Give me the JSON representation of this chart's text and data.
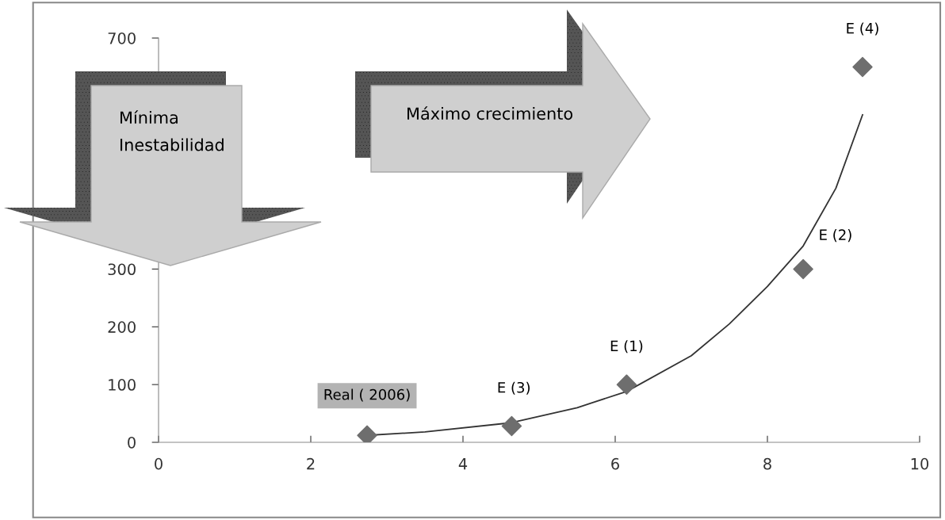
{
  "chart_data": {
    "type": "scatter",
    "xlim": [
      0,
      10
    ],
    "xticks": [
      0,
      2,
      4,
      6,
      8,
      10
    ],
    "ylim": [
      0,
      700
    ],
    "yticks": [
      0,
      100,
      200,
      300,
      700
    ],
    "grid": false,
    "legend": false,
    "series": [
      {
        "color": "#6e6e6e",
        "marker": "diamond",
        "x": [
          2.74,
          4.64,
          6.15,
          8.47,
          9.25
        ],
        "values": [
          12,
          28,
          100,
          300,
          650
        ]
      },
      {
        "type": "line",
        "color": "#333333",
        "marker": "none",
        "line_style": "solid",
        "x": [
          2.74,
          3.5,
          4.64,
          5.5,
          6.15,
          7,
          7.5,
          8,
          8.47,
          8.9,
          9.25
        ],
        "values": [
          12,
          18,
          34,
          60,
          88,
          150,
          205,
          270,
          340,
          440,
          567
        ]
      }
    ],
    "annotations": [
      {
        "text": "Real ( 2006)",
        "x": 2.74,
        "y": 12
      },
      {
        "text": "E (3)",
        "x": 4.64,
        "y": 28
      },
      {
        "text": "E (1)",
        "x": 6.15,
        "y": 100
      },
      {
        "text": "E (2)",
        "x": 8.47,
        "y": 300
      },
      {
        "text": "E (4)",
        "x": 9.25,
        "y": 650
      },
      "Mínima\nInestabilidad",
      "Máximo crecimiento"
    ]
  }
}
